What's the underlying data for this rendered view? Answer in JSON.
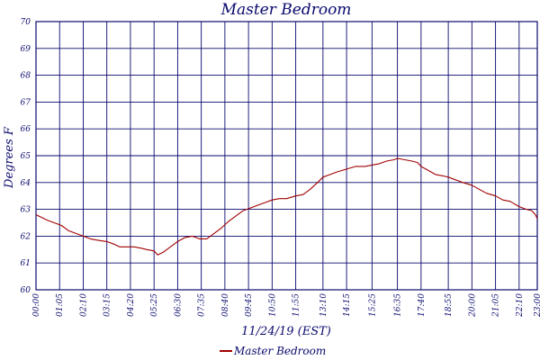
{
  "chart_data": {
    "type": "line",
    "title": "Master Bedroom",
    "xlabel": "11/24/19 (EST)",
    "ylabel": "Degrees F",
    "ylim": [
      60,
      70
    ],
    "yticks": [
      60,
      61,
      62,
      63,
      64,
      65,
      66,
      67,
      68,
      69,
      70
    ],
    "xlim": [
      0,
      1380
    ],
    "xticks": [
      {
        "label": "00:00",
        "minutes": 0
      },
      {
        "label": "01:05",
        "minutes": 65
      },
      {
        "label": "02:10",
        "minutes": 130
      },
      {
        "label": "03:15",
        "minutes": 195
      },
      {
        "label": "04:20",
        "minutes": 260
      },
      {
        "label": "05:25",
        "minutes": 325
      },
      {
        "label": "06:30",
        "minutes": 390
      },
      {
        "label": "07:35",
        "minutes": 455
      },
      {
        "label": "08:40",
        "minutes": 520
      },
      {
        "label": "09:45",
        "minutes": 585
      },
      {
        "label": "10:50",
        "minutes": 650
      },
      {
        "label": "11:55",
        "minutes": 715
      },
      {
        "label": "13:10",
        "minutes": 790
      },
      {
        "label": "14:15",
        "minutes": 855
      },
      {
        "label": "15:25",
        "minutes": 925
      },
      {
        "label": "16:35",
        "minutes": 995
      },
      {
        "label": "17:40",
        "minutes": 1060
      },
      {
        "label": "18:55",
        "minutes": 1135
      },
      {
        "label": "20:00",
        "minutes": 1200
      },
      {
        "label": "21:05",
        "minutes": 1265
      },
      {
        "label": "22:10",
        "minutes": 1330
      },
      {
        "label": "23:00",
        "minutes": 1380
      }
    ],
    "grid": true,
    "legend_position": "bottom-center",
    "colors": {
      "line": "#a00000",
      "grid": "#0a0a6e",
      "frame": "#0a0a6e",
      "text": "#0a0a6e"
    },
    "series": [
      {
        "name": "Master Bedroom",
        "x": [
          0,
          15,
          30,
          50,
          70,
          90,
          110,
          130,
          150,
          170,
          195,
          215,
          230,
          250,
          270,
          290,
          305,
          325,
          335,
          350,
          370,
          390,
          410,
          430,
          450,
          470,
          490,
          510,
          530,
          550,
          570,
          590,
          610,
          630,
          650,
          670,
          690,
          715,
          735,
          755,
          775,
          790,
          810,
          830,
          855,
          880,
          905,
          925,
          945,
          965,
          985,
          995,
          1015,
          1035,
          1050,
          1060,
          1080,
          1100,
          1120,
          1135,
          1155,
          1175,
          1200,
          1220,
          1240,
          1265,
          1285,
          1305,
          1330,
          1350,
          1365,
          1375,
          1380
        ],
        "y": [
          62.8,
          62.7,
          62.6,
          62.5,
          62.4,
          62.2,
          62.1,
          62.0,
          61.9,
          61.85,
          61.8,
          61.7,
          61.6,
          61.6,
          61.6,
          61.55,
          61.5,
          61.45,
          61.3,
          61.4,
          61.6,
          61.8,
          61.95,
          62.0,
          61.9,
          61.9,
          62.1,
          62.3,
          62.55,
          62.75,
          62.95,
          63.05,
          63.15,
          63.25,
          63.35,
          63.4,
          63.4,
          63.5,
          63.55,
          63.75,
          64.0,
          64.2,
          64.3,
          64.4,
          64.5,
          64.6,
          64.6,
          64.65,
          64.7,
          64.8,
          64.85,
          64.9,
          64.85,
          64.8,
          64.75,
          64.6,
          64.45,
          64.3,
          64.25,
          64.2,
          64.1,
          64.0,
          63.9,
          63.75,
          63.6,
          63.5,
          63.35,
          63.3,
          63.1,
          63.0,
          62.95,
          62.8,
          62.65
        ]
      }
    ]
  }
}
